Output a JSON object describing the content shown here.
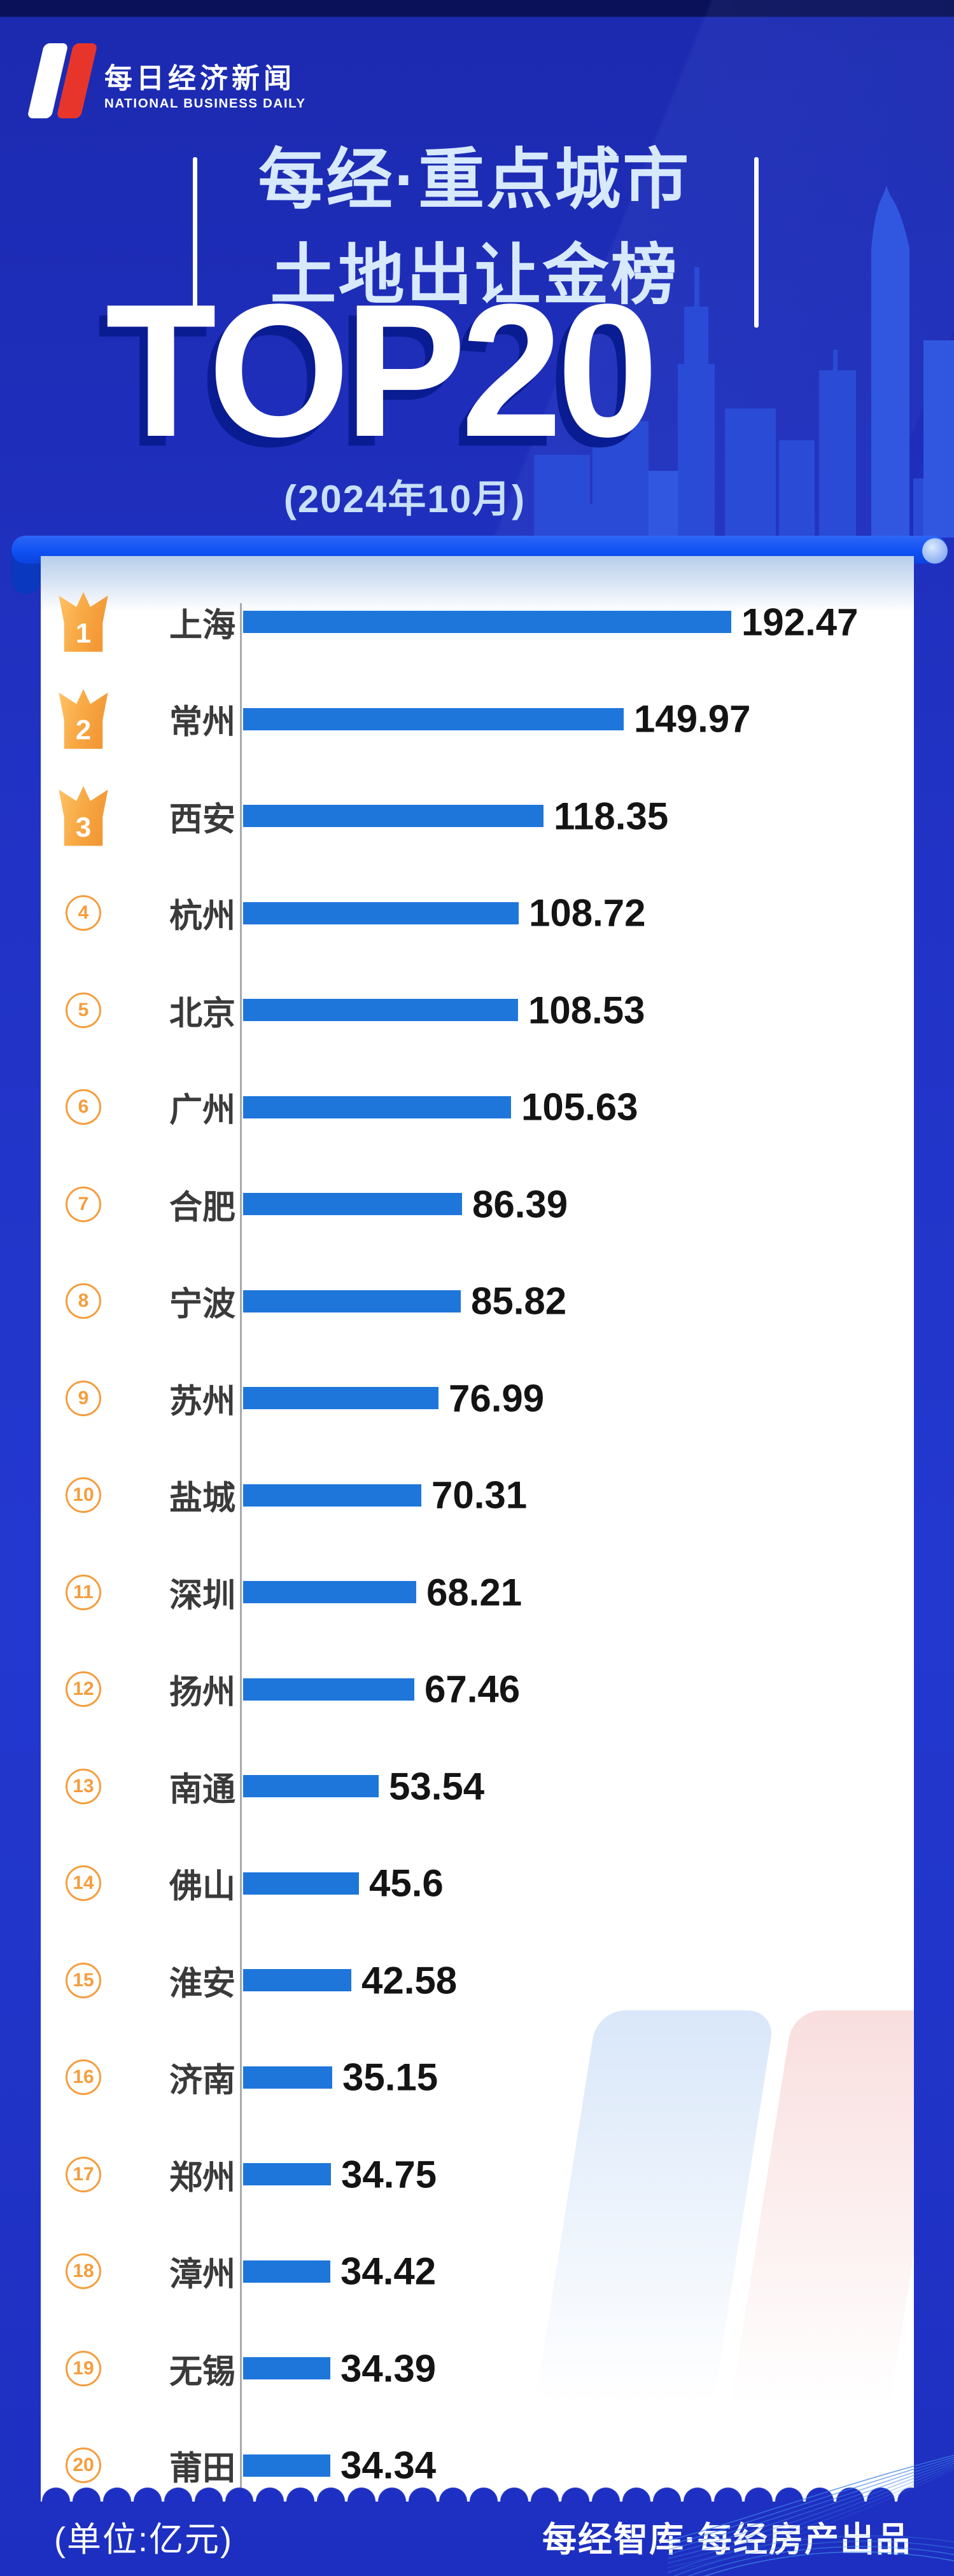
{
  "brand": {
    "logo_icon": "nbd-logo",
    "name_cn": "每日经济新闻",
    "name_en": "NATIONAL BUSINESS DAILY"
  },
  "header": {
    "title_line1": "每经·重点城市",
    "title_line2": "土地出让金榜",
    "headline": "TOP20",
    "period": "(2024年10月)"
  },
  "chart_data": {
    "type": "bar",
    "orientation": "horizontal",
    "title": "每经·重点城市土地出让金榜TOP20",
    "period": "2024年10月",
    "unit": "亿元",
    "xlim": [
      0,
      200
    ],
    "max_value": 192.47,
    "grid": false,
    "legend_position": "none",
    "categories": [
      "上海",
      "常州",
      "西安",
      "杭州",
      "北京",
      "广州",
      "合肥",
      "宁波",
      "苏州",
      "盐城",
      "深圳",
      "扬州",
      "南通",
      "佛山",
      "淮安",
      "济南",
      "郑州",
      "漳州",
      "无锡",
      "莆田"
    ],
    "values": [
      192.47,
      149.97,
      118.35,
      108.72,
      108.53,
      105.63,
      86.39,
      85.82,
      76.99,
      70.31,
      68.21,
      67.46,
      53.54,
      45.6,
      42.58,
      35.15,
      34.75,
      34.42,
      34.39,
      34.34
    ],
    "ranks": [
      1,
      2,
      3,
      4,
      5,
      6,
      7,
      8,
      9,
      10,
      11,
      12,
      13,
      14,
      15,
      16,
      17,
      18,
      19,
      20
    ],
    "crown_ranks": 3
  },
  "footer": {
    "unit_note": "(单位:亿元)",
    "credit": "每经智库·每经房产出品"
  },
  "colors": {
    "background": "#2133c6",
    "background_top_band": "#0a1158",
    "bar": "#1e76db",
    "axis": "#aaaaaa",
    "rank_orange": "#f59d3c",
    "title_light_blue": "#d7e9fc",
    "logo_red": "#e8352b",
    "headline_shadow": "#0a1c91",
    "city_text": "#3a3a3a",
    "value_text": "#141414",
    "skyline": "#2a4bd6",
    "card": "#ffffff"
  }
}
